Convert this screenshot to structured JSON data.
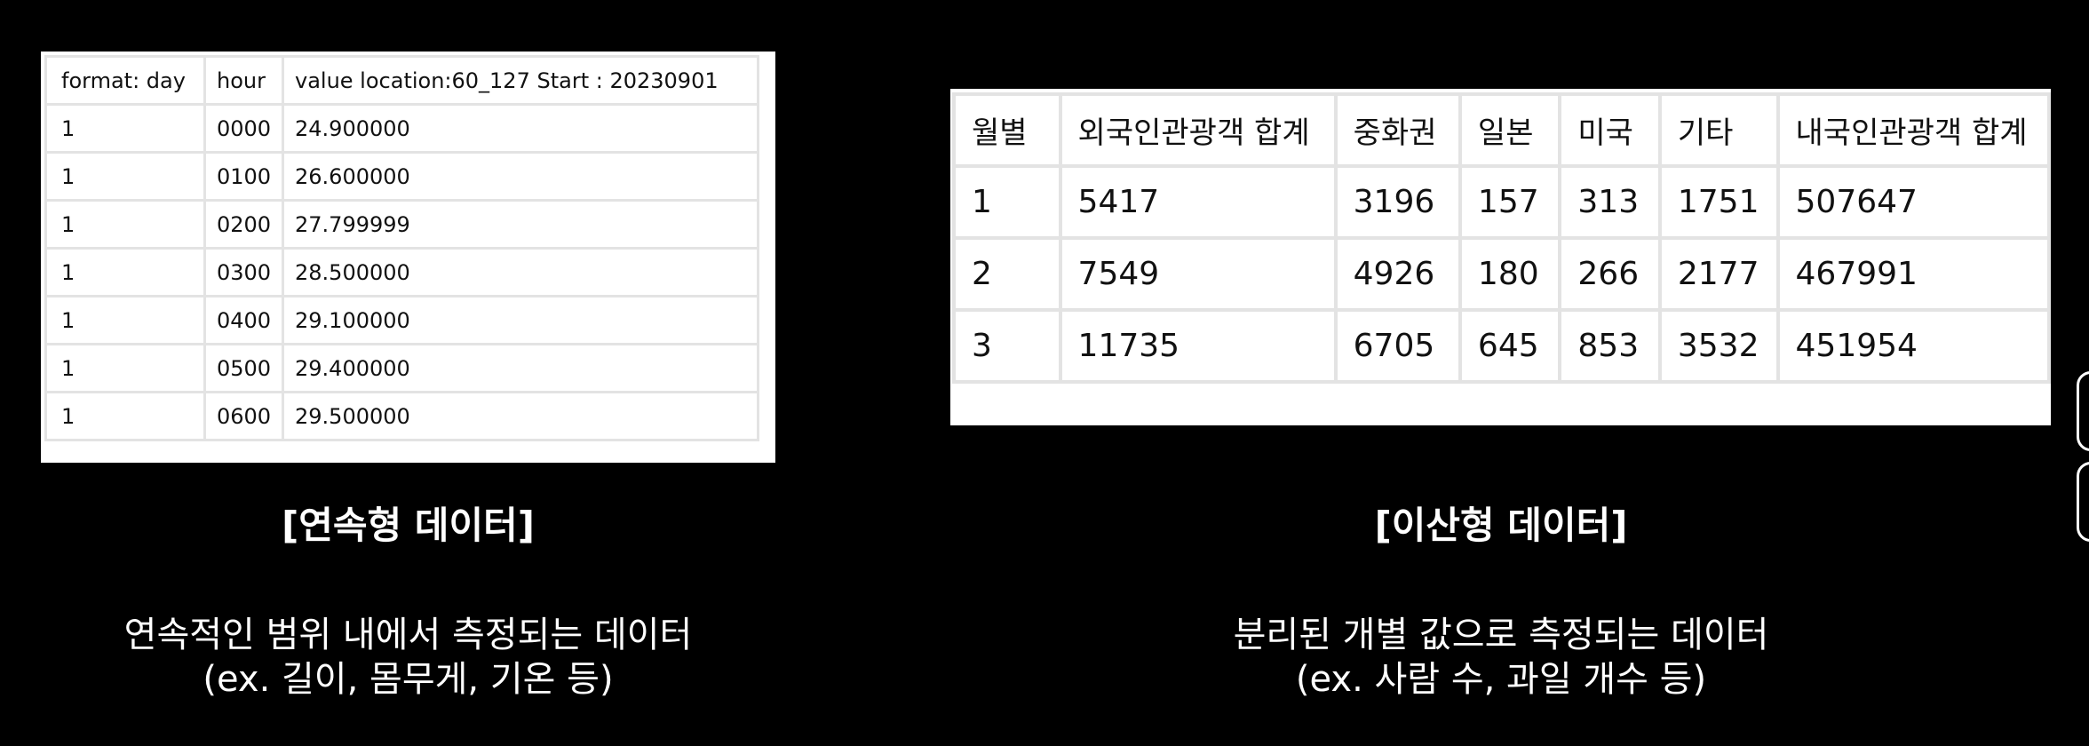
{
  "continuous": {
    "title": "[연속형 데이터]",
    "desc_line1": "연속적인 범위 내에서 측정되는 데이터",
    "desc_line2": "(ex. 길이, 몸무게, 기온 등)",
    "table": {
      "header": [
        "format: day",
        "hour",
        "value location:60_127 Start : 20230901"
      ],
      "rows": [
        [
          "1",
          "0000",
          "24.900000"
        ],
        [
          "1",
          "0100",
          "26.600000"
        ],
        [
          "1",
          "0200",
          "27.799999"
        ],
        [
          "1",
          "0300",
          "28.500000"
        ],
        [
          "1",
          "0400",
          "29.100000"
        ],
        [
          "1",
          "0500",
          "29.400000"
        ],
        [
          "1",
          "0600",
          "29.500000"
        ]
      ]
    }
  },
  "discrete": {
    "title": "[이산형 데이터]",
    "desc_line1": "분리된 개별 값으로 측정되는 데이터",
    "desc_line2": "(ex. 사람 수, 과일 개수 등)",
    "table": {
      "header": [
        "월별",
        "외국인관광객 합계",
        "중화권",
        "일본",
        "미국",
        "기타",
        "내국인관광객 합계"
      ],
      "rows": [
        [
          "1",
          "5417",
          "3196",
          "157",
          "313",
          "1751",
          "507647"
        ],
        [
          "2",
          "7549",
          "4926",
          "180",
          "266",
          "2177",
          "467991"
        ],
        [
          "3",
          "11735",
          "6705",
          "645",
          "853",
          "3532",
          "451954"
        ]
      ]
    }
  },
  "colors": {
    "background": "#000000",
    "text": "#ffffff",
    "table_border": "#e3e3e3"
  }
}
